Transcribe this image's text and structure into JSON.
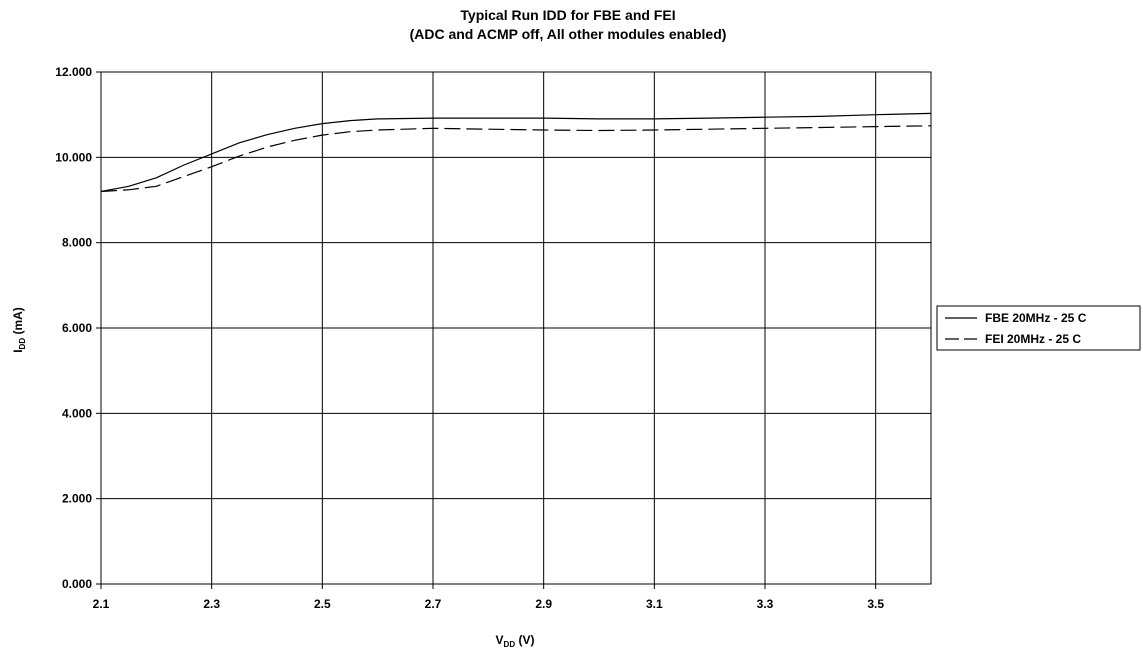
{
  "chart_data": {
    "type": "line",
    "title": "Typical Run IDD for FBE and FEI",
    "subtitle": "(ADC and ACMP off, All other modules enabled)",
    "xlabel_main": "V",
    "xlabel_sub": "DD",
    "xlabel_unit": " (V)",
    "ylabel_main": "I",
    "ylabel_sub": "DD",
    "ylabel_unit": " (mA)",
    "xlim": [
      2.1,
      3.6
    ],
    "ylim": [
      0,
      12
    ],
    "x_ticks": [
      "2.1",
      "2.3",
      "2.5",
      "2.7",
      "2.9",
      "3.1",
      "3.3",
      "3.5"
    ],
    "y_ticks": [
      "0.000",
      "2.000",
      "4.000",
      "6.000",
      "8.000",
      "10.000",
      "12.000"
    ],
    "grid": true,
    "legend_position": "right",
    "series": [
      {
        "name": "FBE 20MHz - 25 C",
        "style": "solid",
        "color": "#000000",
        "x": [
          2.1,
          2.15,
          2.2,
          2.25,
          2.3,
          2.35,
          2.4,
          2.45,
          2.5,
          2.55,
          2.6,
          2.7,
          2.8,
          2.9,
          3.0,
          3.1,
          3.2,
          3.3,
          3.4,
          3.5,
          3.6
        ],
        "y": [
          9.2,
          9.32,
          9.52,
          9.82,
          10.08,
          10.34,
          10.53,
          10.68,
          10.79,
          10.86,
          10.9,
          10.92,
          10.92,
          10.92,
          10.9,
          10.9,
          10.92,
          10.94,
          10.96,
          11.0,
          11.03
        ]
      },
      {
        "name": "FEI 20MHz - 25 C",
        "style": "dashed",
        "color": "#000000",
        "x": [
          2.1,
          2.15,
          2.2,
          2.25,
          2.3,
          2.35,
          2.4,
          2.45,
          2.5,
          2.55,
          2.6,
          2.7,
          2.8,
          2.9,
          3.0,
          3.1,
          3.2,
          3.3,
          3.4,
          3.5,
          3.6
        ],
        "y": [
          9.2,
          9.24,
          9.32,
          9.55,
          9.78,
          10.03,
          10.24,
          10.4,
          10.52,
          10.6,
          10.64,
          10.68,
          10.66,
          10.64,
          10.63,
          10.64,
          10.66,
          10.68,
          10.7,
          10.72,
          10.74
        ]
      }
    ]
  }
}
